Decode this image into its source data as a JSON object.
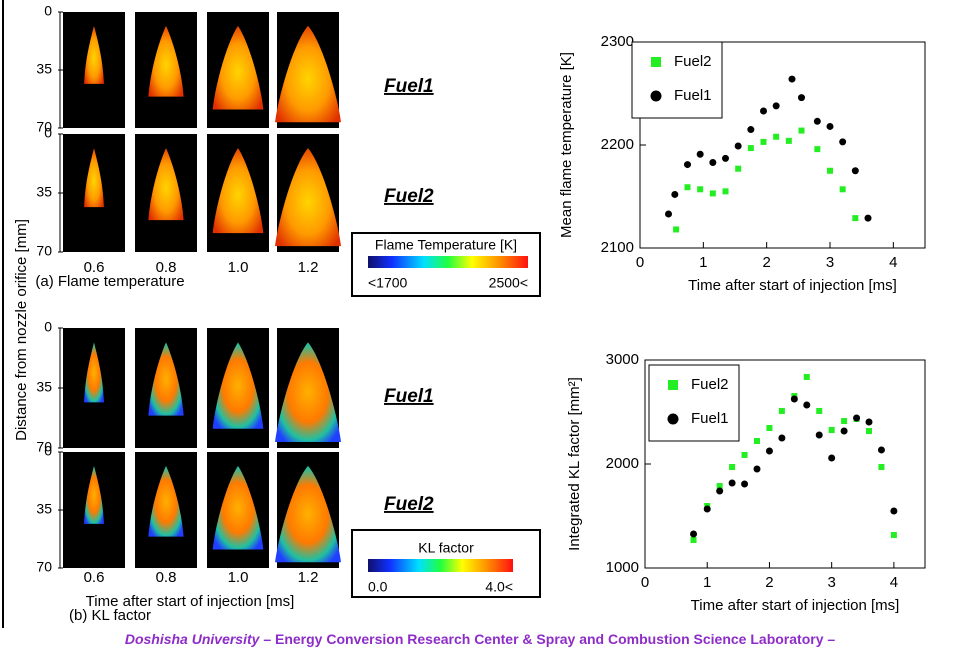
{
  "figure": {
    "y_axis_label": "Distance from nozzle orifice [mm]",
    "depth_ticks": [
      0,
      35,
      70
    ],
    "columns": [
      "0.6",
      "0.8",
      "1.0",
      "1.2"
    ],
    "panels": [
      {
        "caption": "(a) Flame temperature",
        "fuel_labels": [
          "Fuel1",
          "Fuel2"
        ],
        "colorbar": {
          "title": "Flame Temperature [K]",
          "min_label": "<1700",
          "max_label": "2500<"
        }
      },
      {
        "x_label": "Time after start of injection [ms]",
        "caption": "(b) KL factor",
        "fuel_labels": [
          "Fuel1",
          "Fuel2"
        ],
        "colorbar": {
          "title": "KL factor",
          "min_label": "0.0",
          "max_label": "4.0<"
        }
      }
    ],
    "footer": {
      "institution": "Doshisha University",
      "text": " – Energy Conversion Research Center & Spray and Combustion Science Laboratory –"
    }
  },
  "chart_data": [
    {
      "type": "scatter",
      "x_label": "Time after start of injection [ms]",
      "y_label": "Mean flame temperature [K]",
      "xlim": [
        0,
        4.5
      ],
      "ylim": [
        2100,
        2300
      ],
      "xticks": [
        0,
        1,
        2,
        3,
        4
      ],
      "yticks": [
        2100,
        2200,
        2300
      ],
      "legend": "upper left",
      "series": [
        {
          "name": "Fuel2",
          "color": "#22ee22",
          "marker": "square",
          "x": [
            0.57,
            0.75,
            0.95,
            1.15,
            1.35,
            1.55,
            1.75,
            1.95,
            2.15,
            2.35,
            2.55,
            2.8,
            3.0,
            3.2,
            3.4
          ],
          "values": [
            2118,
            2159,
            2157,
            2153,
            2155,
            2177,
            2197,
            2203,
            2208,
            2204,
            2214,
            2196,
            2175,
            2157,
            2129
          ]
        },
        {
          "name": "Fuel1",
          "color": "#000000",
          "marker": "circle",
          "x": [
            0.45,
            0.55,
            0.75,
            0.95,
            1.15,
            1.35,
            1.55,
            1.75,
            1.95,
            2.15,
            2.4,
            2.55,
            2.8,
            3.0,
            3.2,
            3.4,
            3.6
          ],
          "values": [
            2133,
            2152,
            2181,
            2191,
            2183,
            2187,
            2199,
            2215,
            2233,
            2238,
            2264,
            2246,
            2223,
            2218,
            2203,
            2175,
            2129
          ]
        }
      ]
    },
    {
      "type": "scatter",
      "x_label": "Time after start of injection [ms]",
      "y_label": "Integrated KL factor [mm²]",
      "xlim": [
        0,
        4.5
      ],
      "ylim": [
        1000,
        3000
      ],
      "xticks": [
        0,
        1,
        2,
        3,
        4
      ],
      "yticks": [
        1000,
        2000,
        3000
      ],
      "legend": "upper left",
      "series": [
        {
          "name": "Fuel2",
          "color": "#22ee22",
          "marker": "square",
          "x": [
            0.78,
            1.0,
            1.2,
            1.4,
            1.6,
            1.8,
            2.0,
            2.2,
            2.4,
            2.6,
            2.8,
            3.0,
            3.2,
            3.4,
            3.6,
            3.8,
            4.0
          ],
          "values": [
            1269,
            1596,
            1788,
            1971,
            2087,
            2221,
            2346,
            2510,
            2654,
            2837,
            2510,
            2327,
            2413,
            2433,
            2317,
            1971,
            1317
          ]
        },
        {
          "name": "Fuel1",
          "color": "#000000",
          "marker": "circle",
          "x": [
            0.78,
            1.0,
            1.2,
            1.4,
            1.6,
            1.8,
            2.0,
            2.2,
            2.4,
            2.6,
            2.8,
            3.0,
            3.2,
            3.4,
            3.6,
            3.8,
            4.0
          ],
          "values": [
            1327,
            1567,
            1740,
            1817,
            1808,
            1952,
            2125,
            2250,
            2625,
            2567,
            2279,
            2058,
            2317,
            2442,
            2404,
            2135,
            1548
          ]
        }
      ]
    }
  ]
}
